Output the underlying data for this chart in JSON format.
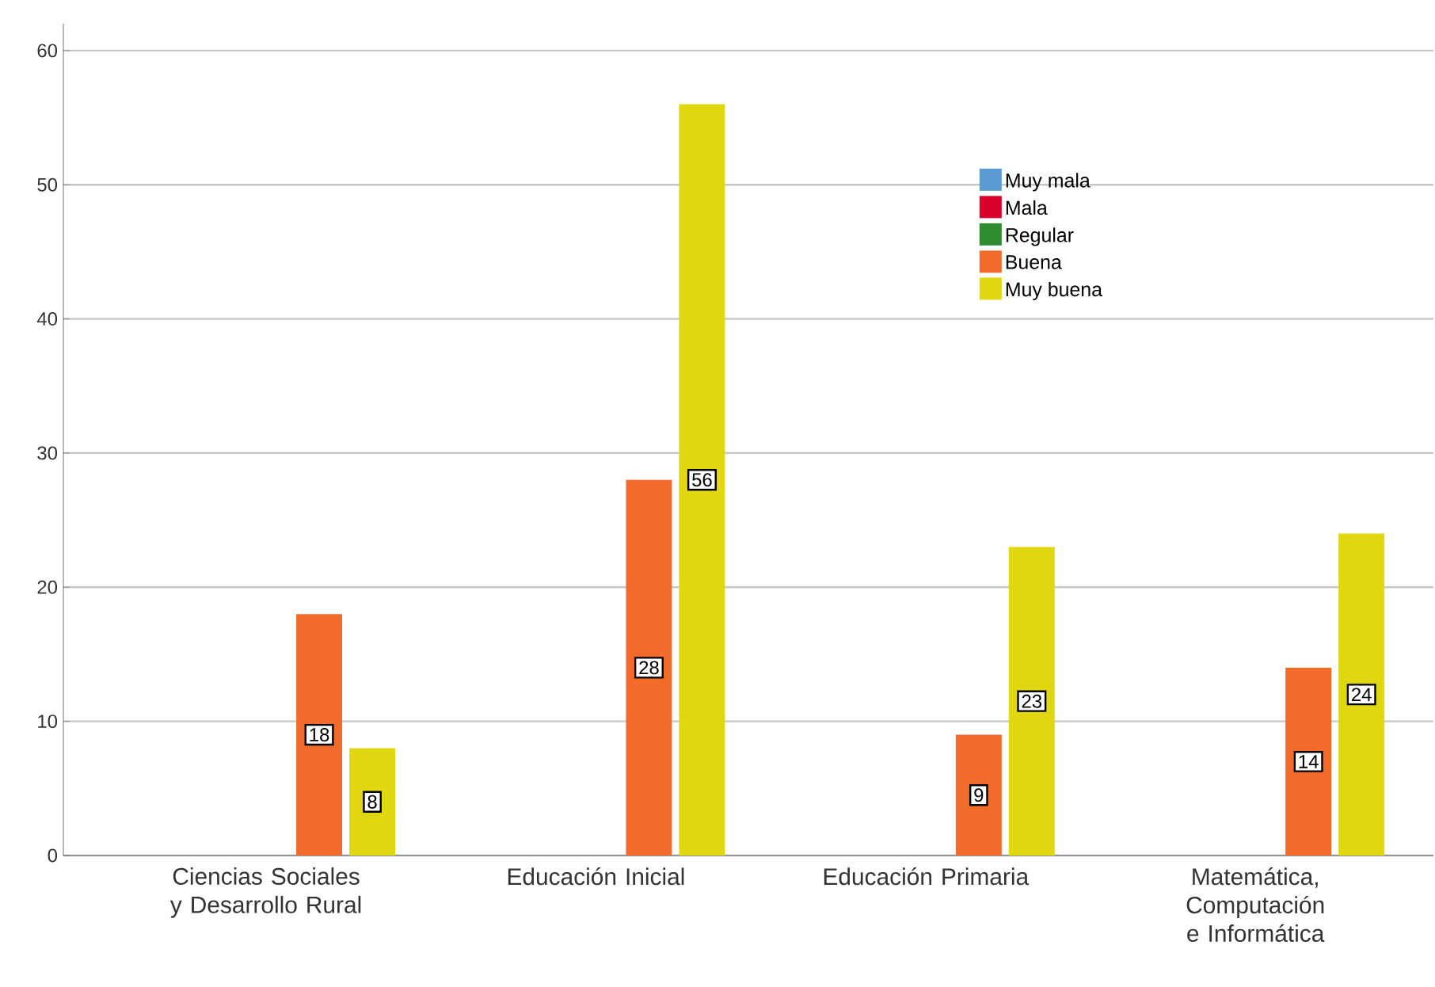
{
  "chart_data": {
    "type": "bar",
    "categories": [
      "Ciencias Sociales y Desarrollo Rural",
      "Educación Inicial",
      "Educación Primaria",
      "Matemática, Computación e Informática"
    ],
    "series": [
      {
        "name": "Muy mala",
        "color": "#5b9bd5",
        "values": [
          null,
          null,
          null,
          null
        ]
      },
      {
        "name": "Mala",
        "color": "#d9002b",
        "values": [
          null,
          null,
          null,
          null
        ]
      },
      {
        "name": "Regular",
        "color": "#2e8b2e",
        "values": [
          null,
          null,
          null,
          null
        ]
      },
      {
        "name": "Buena",
        "color": "#f26b2a",
        "values": [
          18,
          28,
          9,
          14
        ]
      },
      {
        "name": "Muy buena",
        "color": "#e1d711",
        "values": [
          8,
          56,
          23,
          24
        ]
      }
    ],
    "ylim": [
      0,
      62
    ],
    "yticks": [
      0,
      10,
      20,
      30,
      40,
      50,
      60
    ],
    "grid": "y",
    "legend": "top right",
    "data_labels": true
  }
}
